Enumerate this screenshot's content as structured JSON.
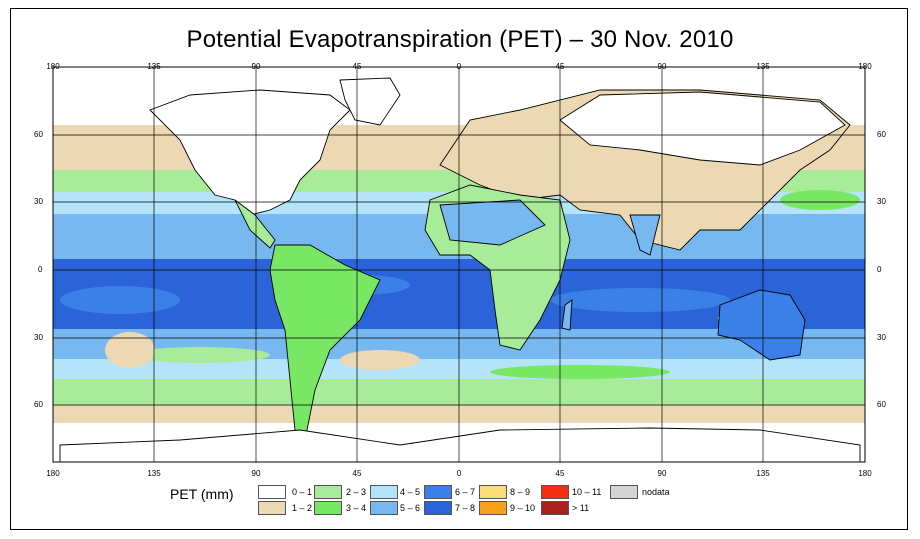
{
  "title": "Potential Evapotranspiration (PET) – 30 Nov. 2010",
  "lon_labels": [
    "180",
    "135",
    "90",
    "45",
    "0",
    "45",
    "90",
    "135",
    "180"
  ],
  "lat_labels_left": [
    "60",
    "30",
    "0",
    "30",
    "60"
  ],
  "lat_labels_right": [
    "60",
    "30",
    "0",
    "30",
    "60"
  ],
  "legend": {
    "title": "PET (mm)",
    "items": [
      {
        "label": "0 – 1",
        "color": "#ffffff"
      },
      {
        "label": "1 – 2",
        "color": "#ecd9b4"
      },
      {
        "label": "2 – 3",
        "color": "#a8ec9a"
      },
      {
        "label": "3 – 4",
        "color": "#78e864"
      },
      {
        "label": "4 – 5",
        "color": "#b4e4fa"
      },
      {
        "label": "5 – 6",
        "color": "#78b8f0"
      },
      {
        "label": "6 – 7",
        "color": "#3a80e6"
      },
      {
        "label": "7 – 8",
        "color": "#2a64d8"
      },
      {
        "label": "8 – 9",
        "color": "#fadc78"
      },
      {
        "label": "9 – 10",
        "color": "#f8a020"
      },
      {
        "label": "10 – 11",
        "color": "#f03010"
      },
      {
        "label": "> 11",
        "color": "#a82020"
      },
      {
        "label": "nodata",
        "color": "#d4d4d4"
      }
    ]
  }
}
